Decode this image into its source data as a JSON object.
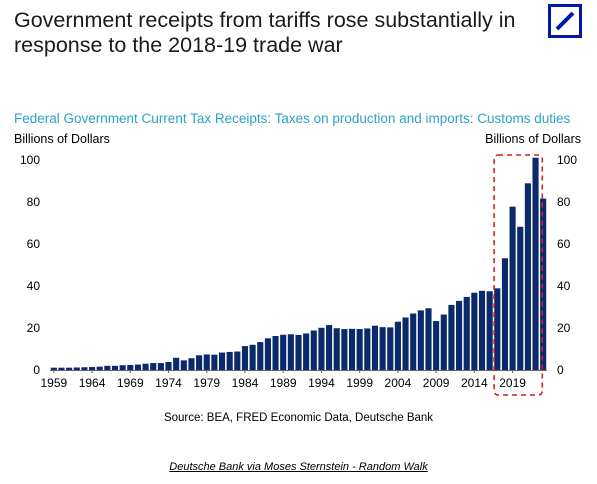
{
  "headline": "Government receipts from tariffs rose substantially in response to the 2018-19 trade war",
  "logo_icon": "deutsche-bank-slash-logo",
  "colors": {
    "bar": "#0b2a6b",
    "subtitle": "#2aa3c4",
    "highlight": "#cc2222",
    "logo": "#0018a8"
  },
  "credit": "Deutsche Bank via Moses Sternstein - Random Walk",
  "chart_data": {
    "type": "bar",
    "title": "Federal Government Current Tax Receipts: Taxes on production and imports: Customs duties",
    "ylabel_left": "Billions of Dollars",
    "ylabel_right": "Billions of Dollars",
    "source": "Source: BEA, FRED Economic Data, Deutsche Bank",
    "ylim": [
      0,
      100
    ],
    "yticks": [
      0,
      20,
      40,
      60,
      80,
      100
    ],
    "xtick_labels": [
      "1959",
      "1964",
      "1969",
      "1974",
      "1979",
      "1984",
      "1989",
      "1994",
      "1999",
      "2004",
      "2009",
      "2014",
      "2019"
    ],
    "highlight_range": [
      "2018",
      "2022"
    ],
    "grid": false,
    "categories": [
      "1959",
      "1960",
      "1961",
      "1962",
      "1963",
      "1964",
      "1965",
      "1966",
      "1967",
      "1968",
      "1969",
      "1970",
      "1971",
      "1972",
      "1973",
      "1974",
      "1975",
      "1976",
      "1977",
      "1978",
      "1979",
      "1980",
      "1981",
      "1982",
      "1983",
      "1984",
      "1985",
      "1986",
      "1987",
      "1988",
      "1989",
      "1990",
      "1991",
      "1992",
      "1993",
      "1994",
      "1995",
      "1996",
      "1997",
      "1998",
      "1999",
      "2000",
      "2001",
      "2002",
      "2003",
      "2004",
      "2005",
      "2006",
      "2007",
      "2008",
      "2009",
      "2010",
      "2011",
      "2012",
      "2013",
      "2014",
      "2015",
      "2016",
      "2017",
      "2018",
      "2019",
      "2020",
      "2021",
      "2022",
      "2023"
    ],
    "values": [
      1.1,
      1.1,
      1.1,
      1.2,
      1.3,
      1.4,
      1.6,
      2.0,
      2.0,
      2.3,
      2.4,
      2.6,
      3.0,
      3.3,
      3.3,
      3.8,
      5.8,
      4.6,
      5.6,
      7.0,
      7.4,
      7.3,
      8.3,
      8.6,
      8.8,
      11.4,
      12.0,
      13.3,
      15.1,
      16.2,
      16.8,
      17.0,
      16.7,
      17.4,
      18.8,
      20.1,
      21.4,
      19.9,
      19.5,
      19.6,
      19.5,
      19.8,
      21.1,
      20.4,
      20.3,
      23.0,
      25.0,
      26.9,
      28.4,
      29.4,
      23.3,
      26.4,
      31.0,
      32.9,
      34.8,
      36.8,
      37.7,
      37.5,
      38.9,
      53.2,
      77.8,
      68.2,
      88.9,
      101.1,
      81.6
    ]
  }
}
